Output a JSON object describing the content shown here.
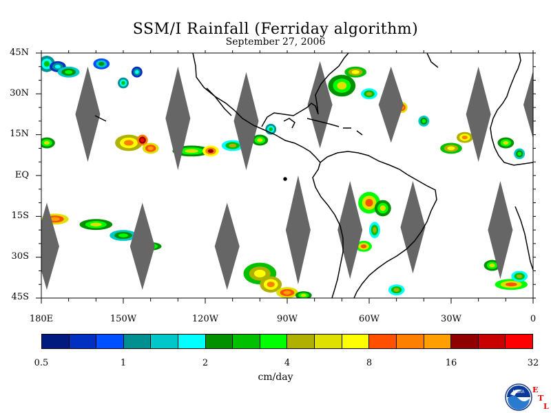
{
  "chart_data": {
    "type": "heatmap",
    "title": "SSM/I Rainfall (Ferriday algorithm)",
    "subtitle": "September 27, 2006",
    "units": "cm/day",
    "lat_range": [
      -45,
      45
    ],
    "lon_range": [
      -180,
      0
    ],
    "lat_ticks": [
      "45N",
      "30N",
      "15N",
      "EQ",
      "15S",
      "30S",
      "45S"
    ],
    "lon_ticks": [
      "180E",
      "150W",
      "120W",
      "90W",
      "60W",
      "30W",
      "0"
    ],
    "colorbar": {
      "colors": [
        "#001a80",
        "#0030c0",
        "#0050ff",
        "#009090",
        "#00c8c8",
        "#00ffff",
        "#009000",
        "#00c000",
        "#00ff00",
        "#b0b000",
        "#e0e000",
        "#ffff00",
        "#ff5000",
        "#ff8000",
        "#ffa000",
        "#900000",
        "#c80000",
        "#ff0000"
      ],
      "labels": [
        "0.5",
        "1",
        "2",
        "4",
        "8",
        "16",
        "32"
      ]
    },
    "no_data_color": "#666666",
    "coast_color": "#000000",
    "swath_gaps": [
      {
        "lon": -163,
        "lat_min": 5,
        "lat_max": 40
      },
      {
        "lon": -130,
        "lat_min": 2,
        "lat_max": 40
      },
      {
        "lon": -105,
        "lat_min": 2,
        "lat_max": 38
      },
      {
        "lon": -78,
        "lat_min": 10,
        "lat_max": 42
      },
      {
        "lon": -52,
        "lat_min": 12,
        "lat_max": 40
      },
      {
        "lon": -20,
        "lat_min": 5,
        "lat_max": 40
      },
      {
        "lon": 1,
        "lat_min": 10,
        "lat_max": 42
      },
      {
        "lon": -178,
        "lat_min": -42,
        "lat_max": -10
      },
      {
        "lon": -143,
        "lat_min": -42,
        "lat_max": -10
      },
      {
        "lon": -112,
        "lat_min": -42,
        "lat_max": -10
      },
      {
        "lon": -86,
        "lat_min": -40,
        "lat_max": 0
      },
      {
        "lon": -67,
        "lat_min": -38,
        "lat_max": -2
      },
      {
        "lon": -44,
        "lat_min": -36,
        "lat_max": -2
      },
      {
        "lon": -12,
        "lat_min": -38,
        "lat_max": -2
      }
    ],
    "rain_cells": [
      {
        "lon": -178,
        "lat": 41,
        "rx": 3,
        "ry": 3,
        "level": 7
      },
      {
        "lon": -174,
        "lat": 40,
        "rx": 3,
        "ry": 2,
        "level": 5
      },
      {
        "lon": -170,
        "lat": 38,
        "rx": 4,
        "ry": 2,
        "level": 8
      },
      {
        "lon": -158,
        "lat": 41,
        "rx": 3,
        "ry": 2,
        "level": 6
      },
      {
        "lon": -150,
        "lat": 34,
        "rx": 2,
        "ry": 2,
        "level": 7
      },
      {
        "lon": -145,
        "lat": 38,
        "rx": 2,
        "ry": 2,
        "level": 5
      },
      {
        "lon": -178,
        "lat": 12,
        "rx": 3,
        "ry": 2,
        "level": 10
      },
      {
        "lon": -148,
        "lat": 12,
        "rx": 5,
        "ry": 3,
        "level": 13
      },
      {
        "lon": -143,
        "lat": 13,
        "rx": 2,
        "ry": 2,
        "level": 17
      },
      {
        "lon": -140,
        "lat": 10,
        "rx": 3,
        "ry": 2,
        "level": 14
      },
      {
        "lon": -125,
        "lat": 9,
        "rx": 7,
        "ry": 2,
        "level": 10
      },
      {
        "lon": -118,
        "lat": 9,
        "rx": 3,
        "ry": 2,
        "level": 15
      },
      {
        "lon": -110,
        "lat": 11,
        "rx": 4,
        "ry": 2,
        "level": 9
      },
      {
        "lon": -100,
        "lat": 13,
        "rx": 3,
        "ry": 2,
        "level": 10
      },
      {
        "lon": -96,
        "lat": 17,
        "rx": 2,
        "ry": 2,
        "level": 7
      },
      {
        "lon": -70,
        "lat": 33,
        "rx": 5,
        "ry": 4,
        "level": 10
      },
      {
        "lon": -65,
        "lat": 38,
        "rx": 4,
        "ry": 2,
        "level": 11
      },
      {
        "lon": -60,
        "lat": 30,
        "rx": 3,
        "ry": 2,
        "level": 9
      },
      {
        "lon": -48,
        "lat": 25,
        "rx": 2,
        "ry": 2,
        "level": 14
      },
      {
        "lon": -40,
        "lat": 20,
        "rx": 2,
        "ry": 2,
        "level": 8
      },
      {
        "lon": -30,
        "lat": 10,
        "rx": 4,
        "ry": 2,
        "level": 11
      },
      {
        "lon": -25,
        "lat": 14,
        "rx": 3,
        "ry": 2,
        "level": 13
      },
      {
        "lon": -10,
        "lat": 12,
        "rx": 3,
        "ry": 2,
        "level": 10
      },
      {
        "lon": -5,
        "lat": 8,
        "rx": 2,
        "ry": 2,
        "level": 8
      },
      {
        "lon": -60,
        "lat": -10,
        "rx": 4,
        "ry": 4,
        "level": 12
      },
      {
        "lon": -55,
        "lat": -12,
        "rx": 3,
        "ry": 3,
        "level": 10
      },
      {
        "lon": -58,
        "lat": -20,
        "rx": 2,
        "ry": 3,
        "level": 9
      },
      {
        "lon": -62,
        "lat": -26,
        "rx": 3,
        "ry": 2,
        "level": 12
      },
      {
        "lon": -175,
        "lat": -16,
        "rx": 5,
        "ry": 2,
        "level": 14
      },
      {
        "lon": -160,
        "lat": -18,
        "rx": 6,
        "ry": 2,
        "level": 10
      },
      {
        "lon": -150,
        "lat": -22,
        "rx": 5,
        "ry": 2,
        "level": 8
      },
      {
        "lon": -140,
        "lat": -26,
        "rx": 4,
        "ry": 1.5,
        "level": 10
      },
      {
        "lon": -100,
        "lat": -36,
        "rx": 6,
        "ry": 4,
        "level": 11
      },
      {
        "lon": -96,
        "lat": -40,
        "rx": 4,
        "ry": 3,
        "level": 13
      },
      {
        "lon": -90,
        "lat": -43,
        "rx": 4,
        "ry": 2,
        "level": 14
      },
      {
        "lon": -84,
        "lat": -44,
        "rx": 3,
        "ry": 1.5,
        "level": 10
      },
      {
        "lon": -50,
        "lat": -42,
        "rx": 3,
        "ry": 2,
        "level": 9
      },
      {
        "lon": -15,
        "lat": -33,
        "rx": 3,
        "ry": 2,
        "level": 10
      },
      {
        "lon": -8,
        "lat": -40,
        "rx": 6,
        "ry": 2,
        "level": 12
      },
      {
        "lon": -5,
        "lat": -37,
        "rx": 3,
        "ry": 2,
        "level": 9
      }
    ]
  },
  "logo": {
    "name": "NOAA",
    "letters": [
      "E",
      "T",
      "L"
    ]
  }
}
